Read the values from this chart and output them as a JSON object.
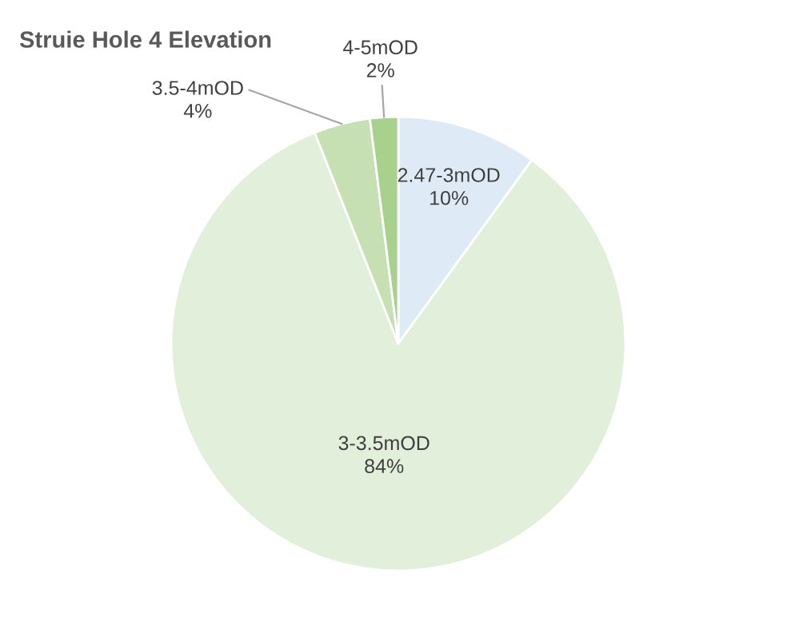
{
  "chart_data": {
    "type": "pie",
    "title": "Struie Hole 4 Elevation",
    "categories": [
      "2.47-3mOD",
      "3-3.5mOD",
      "3.5-4mOD",
      "4-5mOD"
    ],
    "values": [
      10,
      84,
      4,
      2
    ],
    "colors": [
      "#deebf7",
      "#e2efda",
      "#c6e0b4",
      "#a9d18e"
    ],
    "value_labels": [
      "10%",
      "84%",
      "4%",
      "2%"
    ],
    "legend": false
  }
}
